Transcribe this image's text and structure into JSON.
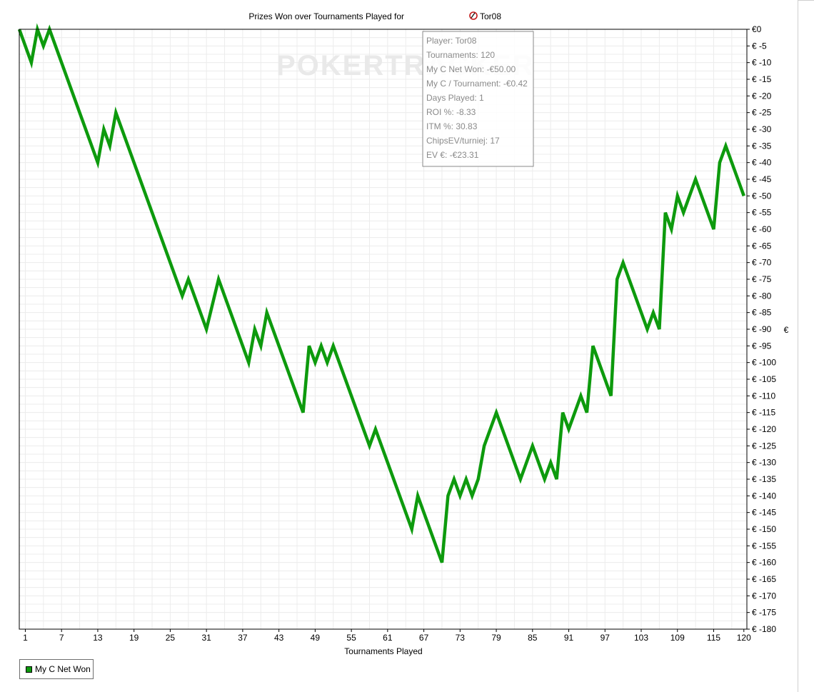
{
  "chart_data": {
    "type": "line",
    "title": "Prizes Won over Tournaments Played for",
    "player_name": "Tor08",
    "xlabel": "Tournaments Played",
    "ylabel": "€",
    "xlim": [
      0,
      120.5
    ],
    "ylim": [
      -180,
      0
    ],
    "x_ticks": [
      1,
      7,
      13,
      19,
      25,
      31,
      37,
      43,
      49,
      55,
      61,
      67,
      73,
      79,
      85,
      91,
      97,
      103,
      109,
      115,
      120
    ],
    "y_ticks": [
      0,
      -5,
      -10,
      -15,
      -20,
      -25,
      -30,
      -35,
      -40,
      -45,
      -50,
      -55,
      -60,
      -65,
      -70,
      -75,
      -80,
      -85,
      -90,
      -95,
      -100,
      -105,
      -110,
      -115,
      -120,
      -125,
      -130,
      -135,
      -140,
      -145,
      -150,
      -155,
      -160,
      -165,
      -170,
      -175,
      -180
    ],
    "y_tick_labels": [
      "€0",
      "€ -5",
      "€ -10",
      "€ -15",
      "€ -20",
      "€ -25",
      "€ -30",
      "€ -35",
      "€ -40",
      "€ -45",
      "€ -50",
      "€ -55",
      "€ -60",
      "€ -65",
      "€ -70",
      "€ -75",
      "€ -80",
      "€ -85",
      "€ -90",
      "€ -95",
      "€ -100",
      "€ -105",
      "€ -110",
      "€ -115",
      "€ -120",
      "€ -125",
      "€ -130",
      "€ -135",
      "€ -140",
      "€ -145",
      "€ -150",
      "€ -155",
      "€ -160",
      "€ -165",
      "€ -170",
      "€ -175",
      "€ -180"
    ],
    "grid": true,
    "legend_position": "bottom-left",
    "series": [
      {
        "name": "My C Net Won",
        "color": "#0d9a0d",
        "points": [
          [
            0,
            0
          ],
          [
            2,
            -10
          ],
          [
            3,
            0
          ],
          [
            4,
            -5
          ],
          [
            5,
            0
          ],
          [
            13,
            -40
          ],
          [
            14,
            -30
          ],
          [
            15,
            -35
          ],
          [
            16,
            -25
          ],
          [
            27,
            -80
          ],
          [
            28,
            -75
          ],
          [
            31,
            -90
          ],
          [
            33,
            -75
          ],
          [
            38,
            -100
          ],
          [
            39,
            -90
          ],
          [
            40,
            -95
          ],
          [
            41,
            -85
          ],
          [
            47,
            -115
          ],
          [
            48,
            -95
          ],
          [
            49,
            -100
          ],
          [
            50,
            -95
          ],
          [
            51,
            -100
          ],
          [
            52,
            -95
          ],
          [
            58,
            -125
          ],
          [
            59,
            -120
          ],
          [
            65,
            -150
          ],
          [
            66,
            -140
          ],
          [
            70,
            -160
          ],
          [
            71,
            -140
          ],
          [
            72,
            -135
          ],
          [
            73,
            -140
          ],
          [
            74,
            -135
          ],
          [
            75,
            -140
          ],
          [
            76,
            -135
          ],
          [
            77,
            -125
          ],
          [
            79,
            -115
          ],
          [
            83,
            -135
          ],
          [
            85,
            -125
          ],
          [
            87,
            -135
          ],
          [
            88,
            -130
          ],
          [
            89,
            -135
          ],
          [
            90,
            -115
          ],
          [
            91,
            -120
          ],
          [
            93,
            -110
          ],
          [
            94,
            -115
          ],
          [
            95,
            -95
          ],
          [
            98,
            -110
          ],
          [
            99,
            -75
          ],
          [
            100,
            -70
          ],
          [
            104,
            -90
          ],
          [
            105,
            -85
          ],
          [
            106,
            -90
          ],
          [
            107,
            -55
          ],
          [
            108,
            -60
          ],
          [
            109,
            -50
          ],
          [
            110,
            -55
          ],
          [
            112,
            -45
          ],
          [
            115,
            -60
          ],
          [
            116,
            -40
          ],
          [
            117,
            -35
          ],
          [
            120,
            -50
          ]
        ]
      }
    ]
  },
  "watermark": "POKERTRACKER",
  "info_box": {
    "lines": [
      "Player: Tor08",
      "Tournaments: 120",
      "My C Net Won: -€50.00",
      "My C / Tournament: -€0.42",
      "Days Played: 1",
      "ROI %: -8.33",
      "ITM %: 30.83",
      "ChipsEV/turniej: 17",
      "EV €: -€23.31"
    ]
  },
  "legend": {
    "label": "My C Net Won",
    "swatch_color": "#0d9a0d"
  },
  "colors": {
    "grid": "#ececec",
    "axis": "#000000",
    "line": "#0d9a0d",
    "info_border": "#8a8a8a",
    "info_text": "#8a8a8a"
  },
  "icons": {
    "player_icon": "poker-site-logo-icon"
  }
}
